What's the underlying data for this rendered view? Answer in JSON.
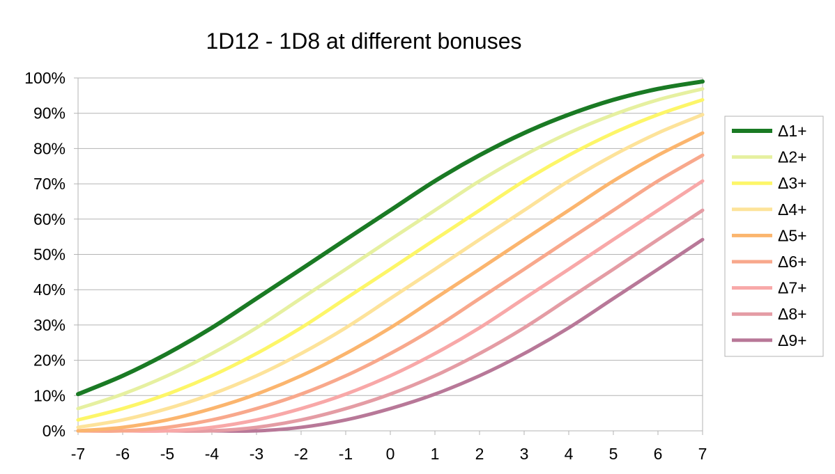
{
  "chart_data": {
    "type": "line",
    "title": "1D12 - 1D8 at different bonuses",
    "xlabel": "",
    "ylabel": "",
    "x": [
      -7,
      -6,
      -5,
      -4,
      -3,
      -2,
      -1,
      0,
      1,
      2,
      3,
      4,
      5,
      6,
      7
    ],
    "x_tick_labels": [
      "-7",
      "-6",
      "-5",
      "-4",
      "-3",
      "-2",
      "-1",
      "0",
      "1",
      "2",
      "3",
      "4",
      "5",
      "6",
      "7"
    ],
    "ylim": [
      0,
      1
    ],
    "y_ticks": [
      0,
      0.1,
      0.2,
      0.3,
      0.4,
      0.5,
      0.6,
      0.7,
      0.8,
      0.9,
      1.0
    ],
    "y_tick_labels": [
      "0%",
      "10%",
      "20%",
      "30%",
      "40%",
      "50%",
      "60%",
      "70%",
      "80%",
      "90%",
      "100%"
    ],
    "grid": "horizontal",
    "legend": "right",
    "series": [
      {
        "name": "Δ1+",
        "color": "#1a7a24",
        "values": [
          0.104,
          0.156,
          0.219,
          0.292,
          0.375,
          0.458,
          0.542,
          0.625,
          0.708,
          0.781,
          0.844,
          0.896,
          0.938,
          0.969,
          0.99
        ]
      },
      {
        "name": "Δ2+",
        "color": "#e6f0a0",
        "values": [
          0.063,
          0.104,
          0.156,
          0.219,
          0.292,
          0.375,
          0.458,
          0.542,
          0.625,
          0.708,
          0.781,
          0.844,
          0.896,
          0.938,
          0.969
        ]
      },
      {
        "name": "Δ3+",
        "color": "#fdf668",
        "values": [
          0.031,
          0.063,
          0.104,
          0.156,
          0.219,
          0.292,
          0.375,
          0.458,
          0.542,
          0.625,
          0.708,
          0.781,
          0.844,
          0.896,
          0.938
        ]
      },
      {
        "name": "Δ4+",
        "color": "#fde39a",
        "values": [
          0.01,
          0.031,
          0.063,
          0.104,
          0.156,
          0.219,
          0.292,
          0.375,
          0.458,
          0.542,
          0.625,
          0.708,
          0.781,
          0.844,
          0.896
        ]
      },
      {
        "name": "Δ5+",
        "color": "#fbb56e",
        "values": [
          0.0,
          0.01,
          0.031,
          0.063,
          0.104,
          0.156,
          0.219,
          0.292,
          0.375,
          0.458,
          0.542,
          0.625,
          0.708,
          0.781,
          0.844
        ]
      },
      {
        "name": "Δ6+",
        "color": "#f8a88c",
        "values": [
          0.0,
          0.0,
          0.01,
          0.031,
          0.063,
          0.104,
          0.156,
          0.219,
          0.292,
          0.375,
          0.458,
          0.542,
          0.625,
          0.708,
          0.781
        ]
      },
      {
        "name": "Δ7+",
        "color": "#f8a8a8",
        "values": [
          0.0,
          0.0,
          0.0,
          0.01,
          0.031,
          0.063,
          0.104,
          0.156,
          0.219,
          0.292,
          0.375,
          0.458,
          0.542,
          0.625,
          0.708
        ]
      },
      {
        "name": "Δ8+",
        "color": "#e49ca4",
        "values": [
          0.0,
          0.0,
          0.0,
          0.0,
          0.01,
          0.031,
          0.063,
          0.104,
          0.156,
          0.219,
          0.292,
          0.375,
          0.458,
          0.542,
          0.625
        ]
      },
      {
        "name": "Δ9+",
        "color": "#b87898",
        "values": [
          0.0,
          0.0,
          0.0,
          0.0,
          0.0,
          0.01,
          0.031,
          0.063,
          0.104,
          0.156,
          0.219,
          0.292,
          0.375,
          0.458,
          0.542
        ]
      }
    ]
  }
}
